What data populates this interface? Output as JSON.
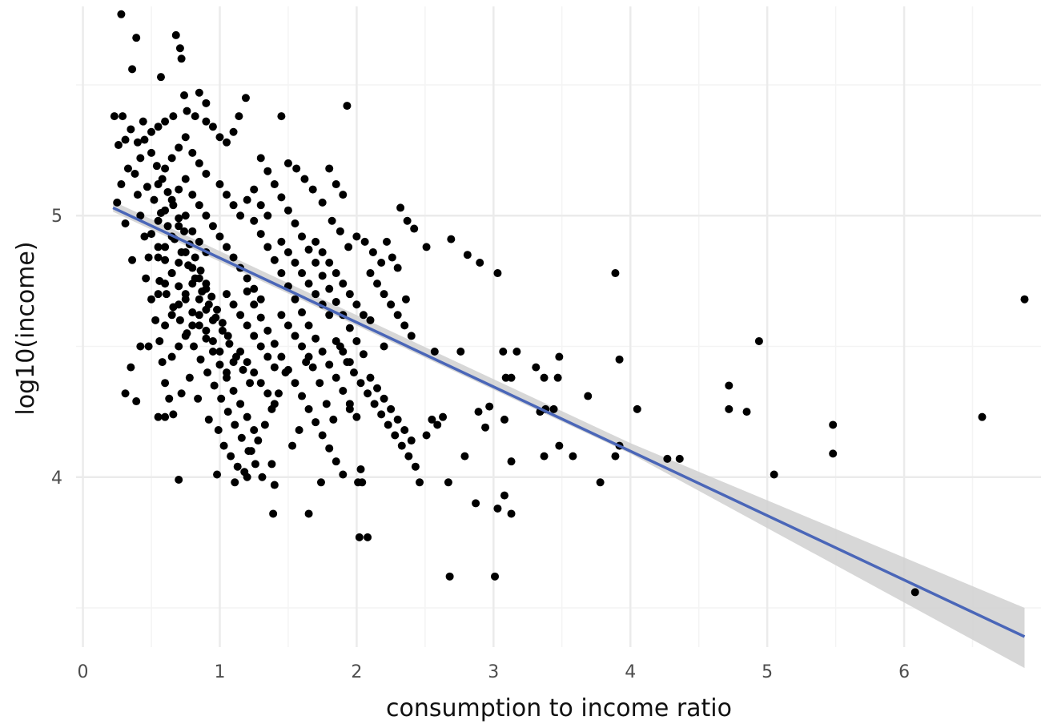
{
  "chart_data": {
    "type": "scatter",
    "title": "",
    "xlabel": "consumption to income ratio",
    "ylabel": "log10(income)",
    "xlim": [
      -0.05,
      7.0
    ],
    "ylim": [
      3.35,
      5.8
    ],
    "x_ticks": [
      0,
      1,
      2,
      3,
      4,
      5,
      6
    ],
    "x_tick_labels": [
      "0",
      "1",
      "2",
      "3",
      "4",
      "5",
      "6"
    ],
    "y_ticks": [
      4,
      5
    ],
    "y_tick_labels": [
      "4",
      "5"
    ],
    "grid": true,
    "legend": "none",
    "colors": {
      "points": "#000000",
      "fit_line": "#4a66b8",
      "ci_band": "#d0d0d0",
      "grid_major": "#ebebeb",
      "grid_minor": "#f4f4f4"
    },
    "fit": {
      "method": "linear",
      "x": [
        0.22,
        6.88
      ],
      "y": [
        5.03,
        3.39
      ],
      "ci_lower": [
        5.015,
        4.09,
        3.27
      ],
      "ci_upper": [
        5.055,
        4.13,
        3.5
      ],
      "ci_x": [
        0.22,
        4.0,
        6.88
      ]
    },
    "points": [
      [
        0.28,
        5.77
      ],
      [
        0.39,
        5.68
      ],
      [
        0.68,
        5.69
      ],
      [
        0.71,
        5.64
      ],
      [
        0.72,
        5.6
      ],
      [
        0.36,
        5.56
      ],
      [
        0.57,
        5.53
      ],
      [
        1.19,
        5.45
      ],
      [
        0.74,
        5.46
      ],
      [
        0.85,
        5.47
      ],
      [
        0.9,
        5.43
      ],
      [
        1.93,
        5.42
      ],
      [
        0.23,
        5.38
      ],
      [
        0.29,
        5.38
      ],
      [
        1.45,
        5.38
      ],
      [
        1.14,
        5.38
      ],
      [
        0.26,
        5.27
      ],
      [
        0.31,
        5.29
      ],
      [
        0.35,
        5.33
      ],
      [
        0.33,
        5.18
      ],
      [
        0.28,
        5.12
      ],
      [
        0.25,
        5.05
      ],
      [
        0.31,
        4.97
      ],
      [
        0.36,
        4.83
      ],
      [
        0.31,
        4.32
      ],
      [
        0.39,
        4.29
      ],
      [
        0.35,
        4.42
      ],
      [
        0.42,
        4.5
      ],
      [
        0.48,
        4.5
      ],
      [
        0.55,
        4.23
      ],
      [
        0.6,
        4.23
      ],
      [
        0.7,
        3.99
      ],
      [
        0.98,
        4.01
      ],
      [
        1.11,
        3.98
      ],
      [
        1.2,
        4.0
      ],
      [
        1.4,
        3.97
      ],
      [
        1.39,
        3.86
      ],
      [
        1.65,
        3.86
      ],
      [
        1.74,
        3.98
      ],
      [
        1.38,
        4.05
      ],
      [
        2.01,
        3.98
      ],
      [
        2.04,
        3.98
      ],
      [
        2.02,
        3.77
      ],
      [
        2.08,
        3.77
      ],
      [
        2.03,
        4.03
      ],
      [
        2.46,
        3.98
      ],
      [
        2.67,
        3.98
      ],
      [
        2.68,
        3.62
      ],
      [
        3.01,
        3.62
      ],
      [
        2.87,
        3.9
      ],
      [
        3.03,
        3.88
      ],
      [
        3.08,
        3.93
      ],
      [
        3.13,
        3.86
      ],
      [
        3.03,
        4.78
      ],
      [
        2.9,
        4.82
      ],
      [
        2.81,
        4.85
      ],
      [
        2.69,
        4.91
      ],
      [
        2.51,
        4.88
      ],
      [
        2.37,
        4.98
      ],
      [
        2.32,
        5.03
      ],
      [
        2.42,
        4.95
      ],
      [
        2.76,
        4.48
      ],
      [
        2.57,
        4.48
      ],
      [
        3.07,
        4.48
      ],
      [
        3.17,
        4.48
      ],
      [
        3.48,
        4.46
      ],
      [
        3.31,
        4.42
      ],
      [
        3.37,
        4.38
      ],
      [
        3.47,
        4.38
      ],
      [
        3.13,
        4.38
      ],
      [
        3.09,
        4.38
      ],
      [
        3.69,
        4.31
      ],
      [
        3.38,
        4.26
      ],
      [
        3.44,
        4.26
      ],
      [
        3.34,
        4.25
      ],
      [
        3.08,
        4.22
      ],
      [
        2.94,
        4.19
      ],
      [
        2.89,
        4.25
      ],
      [
        2.97,
        4.27
      ],
      [
        2.79,
        4.08
      ],
      [
        2.55,
        4.22
      ],
      [
        2.59,
        4.2
      ],
      [
        2.63,
        4.23
      ],
      [
        2.51,
        4.16
      ],
      [
        3.37,
        4.08
      ],
      [
        3.13,
        4.06
      ],
      [
        3.48,
        4.12
      ],
      [
        3.58,
        4.08
      ],
      [
        3.78,
        3.98
      ],
      [
        3.89,
        4.78
      ],
      [
        3.92,
        4.45
      ],
      [
        3.92,
        4.12
      ],
      [
        3.89,
        4.08
      ],
      [
        4.05,
        4.26
      ],
      [
        4.27,
        4.07
      ],
      [
        4.36,
        4.07
      ],
      [
        4.72,
        4.35
      ],
      [
        4.72,
        4.26
      ],
      [
        4.85,
        4.25
      ],
      [
        4.94,
        4.52
      ],
      [
        5.05,
        4.01
      ],
      [
        5.48,
        4.2
      ],
      [
        5.48,
        4.09
      ],
      [
        6.08,
        3.56
      ],
      [
        6.57,
        4.23
      ],
      [
        6.88,
        4.68
      ],
      [
        0.45,
        5.29
      ],
      [
        0.5,
        5.24
      ],
      [
        0.54,
        5.19
      ],
      [
        0.58,
        5.14
      ],
      [
        0.62,
        5.09
      ],
      [
        0.66,
        5.04
      ],
      [
        0.7,
        4.99
      ],
      [
        0.74,
        4.94
      ],
      [
        0.78,
        4.89
      ],
      [
        0.82,
        4.84
      ],
      [
        0.86,
        4.79
      ],
      [
        0.9,
        4.74
      ],
      [
        0.94,
        4.69
      ],
      [
        0.98,
        4.64
      ],
      [
        1.02,
        4.59
      ],
      [
        1.06,
        4.54
      ],
      [
        0.47,
        5.11
      ],
      [
        0.52,
        5.06
      ],
      [
        0.57,
        5.01
      ],
      [
        0.62,
        4.96
      ],
      [
        0.67,
        4.91
      ],
      [
        0.72,
        4.86
      ],
      [
        0.77,
        4.81
      ],
      [
        0.82,
        4.76
      ],
      [
        0.87,
        4.71
      ],
      [
        0.92,
        4.66
      ],
      [
        0.97,
        4.61
      ],
      [
        1.02,
        4.56
      ],
      [
        1.07,
        4.51
      ],
      [
        1.12,
        4.46
      ],
      [
        1.17,
        4.41
      ],
      [
        1.22,
        4.36
      ],
      [
        0.5,
        4.93
      ],
      [
        0.55,
        4.88
      ],
      [
        0.6,
        4.83
      ],
      [
        0.65,
        4.78
      ],
      [
        0.7,
        4.73
      ],
      [
        0.75,
        4.68
      ],
      [
        0.8,
        4.63
      ],
      [
        0.85,
        4.58
      ],
      [
        0.9,
        4.53
      ],
      [
        0.95,
        4.48
      ],
      [
        1.0,
        4.43
      ],
      [
        1.05,
        4.38
      ],
      [
        1.1,
        4.33
      ],
      [
        1.15,
        4.28
      ],
      [
        1.2,
        4.23
      ],
      [
        1.25,
        4.18
      ],
      [
        0.56,
        4.75
      ],
      [
        0.61,
        4.7
      ],
      [
        0.66,
        4.65
      ],
      [
        0.71,
        4.6
      ],
      [
        0.76,
        4.55
      ],
      [
        0.81,
        4.5
      ],
      [
        0.86,
        4.45
      ],
      [
        0.91,
        4.4
      ],
      [
        0.96,
        4.35
      ],
      [
        1.01,
        4.3
      ],
      [
        1.06,
        4.25
      ],
      [
        1.11,
        4.2
      ],
      [
        1.16,
        4.15
      ],
      [
        1.21,
        4.1
      ],
      [
        1.26,
        4.05
      ],
      [
        1.31,
        4.0
      ],
      [
        1.3,
        5.22
      ],
      [
        1.35,
        5.17
      ],
      [
        1.4,
        5.12
      ],
      [
        1.45,
        5.07
      ],
      [
        1.5,
        5.02
      ],
      [
        1.55,
        4.97
      ],
      [
        1.6,
        4.92
      ],
      [
        1.65,
        4.87
      ],
      [
        1.7,
        4.82
      ],
      [
        1.75,
        4.77
      ],
      [
        1.8,
        4.72
      ],
      [
        1.85,
        4.67
      ],
      [
        1.9,
        4.62
      ],
      [
        1.95,
        4.57
      ],
      [
        2.0,
        4.52
      ],
      [
        2.05,
        4.47
      ],
      [
        1.25,
        4.98
      ],
      [
        1.3,
        4.93
      ],
      [
        1.35,
        4.88
      ],
      [
        1.4,
        4.83
      ],
      [
        1.45,
        4.78
      ],
      [
        1.5,
        4.73
      ],
      [
        1.55,
        4.68
      ],
      [
        1.6,
        4.63
      ],
      [
        1.65,
        4.58
      ],
      [
        1.7,
        4.53
      ],
      [
        1.75,
        4.48
      ],
      [
        1.8,
        4.43
      ],
      [
        1.85,
        4.38
      ],
      [
        1.9,
        4.33
      ],
      [
        1.95,
        4.28
      ],
      [
        2.0,
        4.23
      ],
      [
        1.2,
        4.71
      ],
      [
        1.25,
        4.66
      ],
      [
        1.3,
        4.61
      ],
      [
        1.35,
        4.56
      ],
      [
        1.4,
        4.51
      ],
      [
        1.45,
        4.46
      ],
      [
        1.5,
        4.41
      ],
      [
        1.55,
        4.36
      ],
      [
        1.6,
        4.31
      ],
      [
        1.65,
        4.26
      ],
      [
        1.7,
        4.21
      ],
      [
        1.75,
        4.16
      ],
      [
        1.8,
        4.11
      ],
      [
        1.85,
        4.06
      ],
      [
        1.9,
        4.01
      ],
      [
        1.95,
        4.26
      ],
      [
        2.1,
        4.78
      ],
      [
        2.15,
        4.74
      ],
      [
        2.2,
        4.7
      ],
      [
        2.25,
        4.66
      ],
      [
        2.3,
        4.62
      ],
      [
        2.35,
        4.58
      ],
      [
        2.4,
        4.54
      ],
      [
        2.1,
        4.38
      ],
      [
        2.15,
        4.34
      ],
      [
        2.2,
        4.3
      ],
      [
        2.25,
        4.26
      ],
      [
        2.3,
        4.22
      ],
      [
        2.35,
        4.18
      ],
      [
        2.4,
        4.14
      ],
      [
        2.1,
        4.6
      ],
      [
        2.2,
        4.5
      ],
      [
        1.8,
        5.18
      ],
      [
        1.85,
        5.12
      ],
      [
        1.9,
        5.08
      ],
      [
        1.75,
        5.05
      ],
      [
        1.68,
        5.1
      ],
      [
        1.62,
        5.14
      ],
      [
        1.56,
        5.18
      ],
      [
        1.5,
        5.2
      ],
      [
        1.0,
        5.3
      ],
      [
        1.05,
        5.28
      ],
      [
        1.1,
        5.32
      ],
      [
        0.95,
        5.34
      ],
      [
        0.9,
        5.36
      ],
      [
        0.82,
        5.38
      ],
      [
        0.76,
        5.4
      ],
      [
        0.66,
        5.38
      ],
      [
        0.6,
        5.36
      ],
      [
        0.55,
        5.34
      ],
      [
        0.5,
        5.32
      ],
      [
        0.44,
        5.36
      ],
      [
        0.4,
        5.28
      ],
      [
        0.42,
        5.22
      ],
      [
        0.38,
        5.16
      ],
      [
        0.4,
        5.08
      ],
      [
        0.42,
        5.0
      ],
      [
        0.45,
        4.92
      ],
      [
        0.48,
        4.84
      ],
      [
        0.46,
        4.76
      ],
      [
        0.5,
        4.68
      ],
      [
        0.53,
        4.6
      ],
      [
        0.56,
        4.52
      ],
      [
        0.58,
        4.44
      ],
      [
        0.6,
        4.36
      ],
      [
        0.63,
        4.3
      ],
      [
        0.66,
        4.24
      ],
      [
        0.72,
        4.32
      ],
      [
        0.78,
        4.38
      ],
      [
        0.84,
        4.3
      ],
      [
        0.92,
        4.22
      ],
      [
        0.99,
        4.18
      ],
      [
        1.03,
        4.12
      ],
      [
        1.08,
        4.08
      ],
      [
        1.13,
        4.04
      ],
      [
        1.18,
        4.02
      ],
      [
        1.23,
        4.1
      ],
      [
        1.28,
        4.14
      ],
      [
        1.33,
        4.2
      ],
      [
        1.38,
        4.26
      ],
      [
        1.43,
        4.32
      ],
      [
        1.48,
        4.4
      ],
      [
        1.53,
        4.12
      ],
      [
        1.58,
        4.18
      ],
      [
        1.63,
        4.44
      ],
      [
        1.68,
        4.42
      ],
      [
        1.73,
        4.36
      ],
      [
        1.78,
        4.28
      ],
      [
        1.83,
        4.22
      ],
      [
        1.88,
        4.5
      ],
      [
        1.93,
        4.44
      ],
      [
        1.98,
        4.4
      ],
      [
        2.03,
        4.36
      ],
      [
        2.08,
        4.32
      ],
      [
        2.13,
        4.28
      ],
      [
        2.18,
        4.24
      ],
      [
        2.23,
        4.2
      ],
      [
        2.28,
        4.16
      ],
      [
        2.33,
        4.12
      ],
      [
        2.38,
        4.08
      ],
      [
        2.43,
        4.04
      ],
      [
        2.36,
        4.68
      ],
      [
        2.3,
        4.8
      ],
      [
        2.26,
        4.84
      ],
      [
        2.22,
        4.9
      ],
      [
        2.18,
        4.82
      ],
      [
        2.12,
        4.86
      ],
      [
        2.06,
        4.9
      ],
      [
        2.0,
        4.92
      ],
      [
        1.94,
        4.88
      ],
      [
        1.88,
        4.94
      ],
      [
        1.82,
        4.98
      ],
      [
        1.0,
        5.12
      ],
      [
        1.05,
        5.08
      ],
      [
        1.1,
        5.04
      ],
      [
        1.15,
        5.0
      ],
      [
        1.2,
        5.06
      ],
      [
        1.25,
        5.1
      ],
      [
        1.3,
        5.04
      ],
      [
        1.35,
        5.0
      ],
      [
        0.95,
        4.96
      ],
      [
        1.0,
        4.92
      ],
      [
        1.05,
        4.88
      ],
      [
        1.1,
        4.84
      ],
      [
        1.15,
        4.8
      ],
      [
        1.2,
        4.76
      ],
      [
        1.25,
        4.72
      ],
      [
        1.3,
        4.68
      ],
      [
        0.55,
        5.12
      ],
      [
        0.6,
        5.18
      ],
      [
        0.65,
        5.22
      ],
      [
        0.7,
        5.26
      ],
      [
        0.75,
        5.3
      ],
      [
        0.8,
        5.24
      ],
      [
        0.85,
        5.2
      ],
      [
        0.9,
        5.16
      ],
      [
        0.55,
        4.98
      ],
      [
        0.6,
        5.02
      ],
      [
        0.65,
        5.06
      ],
      [
        0.7,
        5.1
      ],
      [
        0.75,
        5.14
      ],
      [
        0.8,
        5.08
      ],
      [
        0.85,
        5.04
      ],
      [
        0.9,
        5.0
      ],
      [
        0.55,
        4.84
      ],
      [
        0.6,
        4.88
      ],
      [
        0.65,
        4.92
      ],
      [
        0.7,
        4.96
      ],
      [
        0.75,
        5.0
      ],
      [
        0.8,
        4.94
      ],
      [
        0.85,
        4.9
      ],
      [
        0.9,
        4.86
      ],
      [
        0.55,
        4.7
      ],
      [
        0.6,
        4.74
      ],
      [
        0.65,
        4.78
      ],
      [
        0.7,
        4.82
      ],
      [
        0.75,
        4.86
      ],
      [
        0.8,
        4.8
      ],
      [
        0.85,
        4.76
      ],
      [
        0.9,
        4.72
      ],
      [
        0.6,
        4.58
      ],
      [
        0.65,
        4.62
      ],
      [
        0.7,
        4.66
      ],
      [
        0.75,
        4.7
      ],
      [
        0.8,
        4.74
      ],
      [
        0.85,
        4.68
      ],
      [
        0.9,
        4.64
      ],
      [
        0.95,
        4.6
      ],
      [
        0.65,
        4.46
      ],
      [
        0.7,
        4.5
      ],
      [
        0.75,
        4.54
      ],
      [
        0.8,
        4.58
      ],
      [
        0.85,
        4.62
      ],
      [
        0.9,
        4.56
      ],
      [
        0.95,
        4.52
      ],
      [
        1.0,
        4.48
      ],
      [
        1.05,
        4.7
      ],
      [
        1.1,
        4.66
      ],
      [
        1.15,
        4.62
      ],
      [
        1.2,
        4.58
      ],
      [
        1.25,
        4.54
      ],
      [
        1.3,
        4.5
      ],
      [
        1.35,
        4.46
      ],
      [
        1.4,
        4.42
      ],
      [
        1.05,
        4.4
      ],
      [
        1.1,
        4.44
      ],
      [
        1.15,
        4.48
      ],
      [
        1.2,
        4.44
      ],
      [
        1.25,
        4.4
      ],
      [
        1.3,
        4.36
      ],
      [
        1.35,
        4.32
      ],
      [
        1.4,
        4.28
      ],
      [
        1.45,
        4.62
      ],
      [
        1.5,
        4.58
      ],
      [
        1.55,
        4.54
      ],
      [
        1.6,
        4.5
      ],
      [
        1.65,
        4.46
      ],
      [
        1.7,
        4.7
      ],
      [
        1.75,
        4.66
      ],
      [
        1.8,
        4.62
      ],
      [
        1.45,
        4.9
      ],
      [
        1.5,
        4.86
      ],
      [
        1.55,
        4.82
      ],
      [
        1.6,
        4.78
      ],
      [
        1.65,
        4.74
      ],
      [
        1.7,
        4.9
      ],
      [
        1.75,
        4.86
      ],
      [
        1.8,
        4.82
      ],
      [
        1.85,
        4.78
      ],
      [
        1.9,
        4.74
      ],
      [
        1.95,
        4.7
      ],
      [
        2.0,
        4.66
      ],
      [
        2.05,
        4.62
      ],
      [
        1.85,
        4.52
      ],
      [
        1.9,
        4.48
      ],
      [
        1.95,
        4.44
      ]
    ]
  }
}
